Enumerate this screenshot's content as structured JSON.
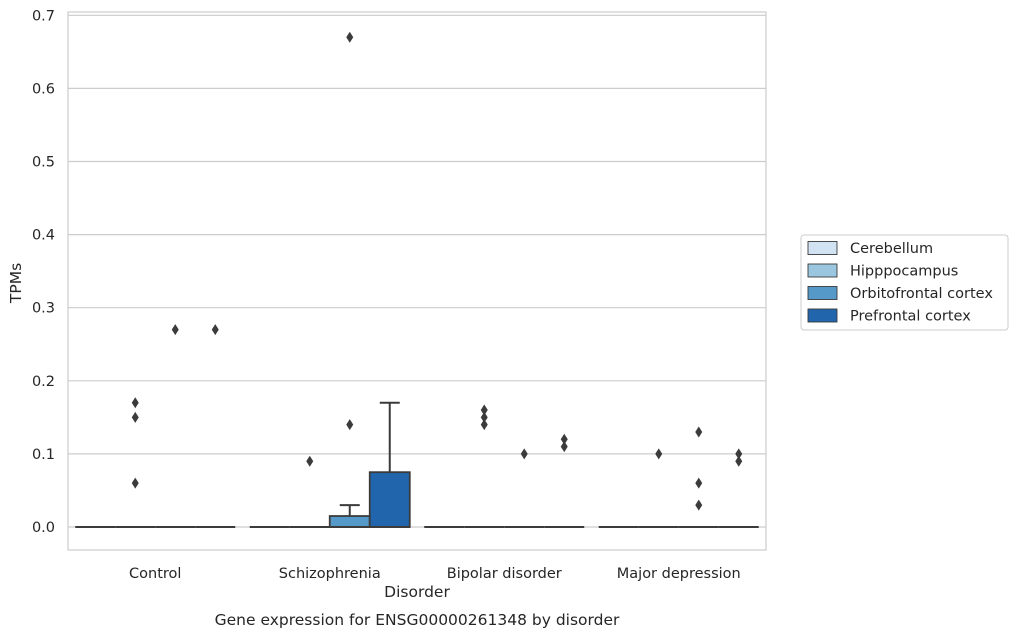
{
  "chart_data": {
    "type": "box",
    "title": "",
    "caption": "Gene expression for ENSG00000261348 by disorder",
    "xlabel": "Disorder",
    "ylabel": "TPMs",
    "ylim": [
      -0.032,
      0.705
    ],
    "yticks": [
      "0.0",
      "0.1",
      "0.2",
      "0.3",
      "0.4",
      "0.5",
      "0.6",
      "0.7"
    ],
    "categories": [
      "Control",
      "Schizophrenia",
      "Bipolar disorder",
      "Major depression"
    ],
    "grid": "horizontal",
    "legend_position": "right",
    "series": [
      {
        "name": "Cerebellum",
        "color": "#d1e2f2",
        "boxes": [
          {
            "q1": 0,
            "median": 0,
            "q3": 0,
            "whisker_low": 0,
            "whisker_high": 0,
            "outliers": []
          },
          {
            "q1": 0,
            "median": 0,
            "q3": 0,
            "whisker_low": 0,
            "whisker_high": 0,
            "outliers": []
          },
          {
            "q1": 0,
            "median": 0,
            "q3": 0,
            "whisker_low": 0,
            "whisker_high": 0,
            "outliers": []
          },
          {
            "q1": 0,
            "median": 0,
            "q3": 0,
            "whisker_low": 0,
            "whisker_high": 0,
            "outliers": []
          }
        ]
      },
      {
        "name": "Hipppocampus",
        "color": "#9ac7df",
        "boxes": [
          {
            "q1": 0,
            "median": 0,
            "q3": 0,
            "whisker_low": 0,
            "whisker_high": 0,
            "outliers": [
              0.17,
              0.15,
              0.06
            ]
          },
          {
            "q1": 0,
            "median": 0,
            "q3": 0,
            "whisker_low": 0,
            "whisker_high": 0,
            "outliers": [
              0.09
            ]
          },
          {
            "q1": 0,
            "median": 0,
            "q3": 0,
            "whisker_low": 0,
            "whisker_high": 0,
            "outliers": [
              0.16,
              0.15,
              0.14
            ]
          },
          {
            "q1": 0,
            "median": 0,
            "q3": 0,
            "whisker_low": 0,
            "whisker_high": 0,
            "outliers": [
              0.1
            ]
          }
        ]
      },
      {
        "name": "Orbitofrontal cortex",
        "color": "#5599c8",
        "boxes": [
          {
            "q1": 0,
            "median": 0,
            "q3": 0,
            "whisker_low": 0,
            "whisker_high": 0,
            "outliers": [
              0.27
            ]
          },
          {
            "q1": 0,
            "median": 0,
            "q3": 0.015,
            "whisker_low": 0,
            "whisker_high": 0.03,
            "outliers": [
              0.67,
              0.14
            ]
          },
          {
            "q1": 0,
            "median": 0,
            "q3": 0,
            "whisker_low": 0,
            "whisker_high": 0,
            "outliers": [
              0.1
            ]
          },
          {
            "q1": 0,
            "median": 0,
            "q3": 0,
            "whisker_low": 0,
            "whisker_high": 0,
            "outliers": [
              0.13,
              0.06,
              0.03
            ]
          }
        ]
      },
      {
        "name": "Prefrontal cortex",
        "color": "#2166ac",
        "boxes": [
          {
            "q1": 0,
            "median": 0,
            "q3": 0,
            "whisker_low": 0,
            "whisker_high": 0,
            "outliers": [
              0.27
            ]
          },
          {
            "q1": 0,
            "median": 0,
            "q3": 0.075,
            "whisker_low": 0,
            "whisker_high": 0.17,
            "outliers": []
          },
          {
            "q1": 0,
            "median": 0,
            "q3": 0,
            "whisker_low": 0,
            "whisker_high": 0,
            "outliers": [
              0.12,
              0.11
            ]
          },
          {
            "q1": 0,
            "median": 0,
            "q3": 0,
            "whisker_low": 0,
            "whisker_high": 0,
            "outliers": [
              0.1,
              0.09
            ]
          }
        ]
      }
    ]
  }
}
